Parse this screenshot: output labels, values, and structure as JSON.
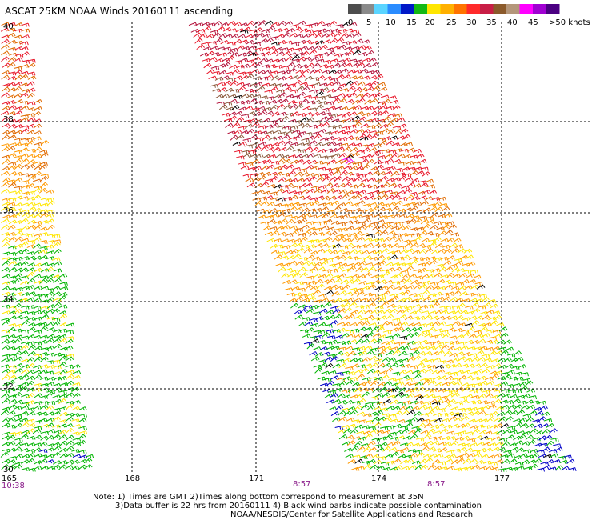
{
  "header": {
    "title": "ASCAT 25KM NOAA Winds 20160111 ascending"
  },
  "legend": {
    "colors": [
      "#4d4d4d",
      "#8a8a8a",
      "#5ad4ff",
      "#2a8cff",
      "#0018c8",
      "#14b814",
      "#ffe600",
      "#ffb000",
      "#ff7300",
      "#ff2a2a",
      "#c81e46",
      "#8b5a2b",
      "#b4967a",
      "#ff00ff",
      "#a000d2",
      "#4b0082"
    ],
    "tick_labels": [
      "0",
      "5",
      "10",
      "15",
      "20",
      "25",
      "30",
      "35",
      "40",
      "45",
      ">50 knots"
    ]
  },
  "axes": {
    "lat_labels": [
      "40",
      "38",
      "36",
      "34",
      "32",
      "30"
    ],
    "lon_labels": [
      "165",
      "168",
      "171",
      "174",
      "177"
    ]
  },
  "times": {
    "left": "10:38",
    "mid": "8:57",
    "right": "8:57"
  },
  "notes": {
    "line1": "Note: 1) Times are GMT 2)Times along bottom correspond to measurement at 35N",
    "line2": "3)Data buffer is 22 hrs from 20160111 4) Black wind barbs indicate possible contamination",
    "line3": "NOAA/NESDIS/Center for Satellite Applications and Research"
  },
  "wind_palette": {
    "green": "#00b400",
    "blue": "#0000c8",
    "yellow": "#ffe600",
    "orange": "#ff9900",
    "darkorange": "#e06a00",
    "red": "#e8182b",
    "crimson": "#b4143c",
    "brown": "#8b5a3c",
    "black": "#000000",
    "magenta": "#ff00ff"
  }
}
